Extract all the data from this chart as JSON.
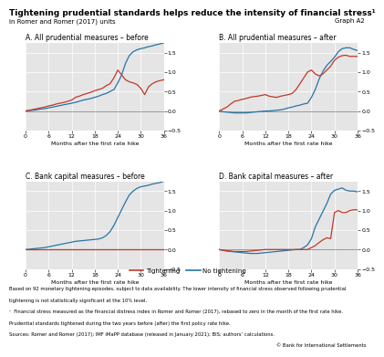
{
  "title": "Tightening prudential standards helps reduce the intensity of financial stress¹",
  "subtitle_left": "In Romer and Romer (2017) units",
  "subtitle_right": "Graph A2",
  "panel_titles": [
    "A. All prudential measures – before",
    "B. All prudential measures – after",
    "C. Bank capital measures – before",
    "D. Bank capital measures – after"
  ],
  "xlabel": "Months after the first rate hike",
  "xlim": [
    0,
    36
  ],
  "ylim": [
    -0.5,
    1.75
  ],
  "yticks": [
    -0.5,
    0.0,
    0.5,
    1.0,
    1.5
  ],
  "xticks": [
    0,
    6,
    12,
    18,
    24,
    30,
    36
  ],
  "color_tightening": "#c0392b",
  "color_no_tightening": "#2874a6",
  "legend_label_tightening": "Tightening",
  "legend_label_no_tightening": "No tightening",
  "footnote1": "Based on 92 monetary tightening episodes, subject to data availability. The lower intensity of financial stress observed following prudential",
  "footnote2": "tightening is not statistically significant at the 10% level.",
  "footnote3": "¹  Financial stress measured as the financial distress index in Romer and Romer (2017), rebased to zero in the month of the first rate hike.",
  "footnote4": "Prudential standards tightened during the two years before (after) the first policy rate hike.",
  "footnote5": "Sources: Romer and Romer (2017); IMF iMaPP database (released in January 2021); BIS; authors’ calculations.",
  "footnote6": "© Bank for International Settlements",
  "panel_A_tightening_x": [
    0,
    1,
    2,
    3,
    4,
    5,
    6,
    7,
    8,
    9,
    10,
    11,
    12,
    13,
    14,
    15,
    16,
    17,
    18,
    19,
    20,
    21,
    22,
    23,
    24,
    25,
    26,
    27,
    28,
    29,
    30,
    31,
    32,
    33,
    34,
    35,
    36
  ],
  "panel_A_tightening_y": [
    0.0,
    0.02,
    0.04,
    0.06,
    0.08,
    0.1,
    0.13,
    0.15,
    0.18,
    0.2,
    0.22,
    0.25,
    0.28,
    0.35,
    0.38,
    0.42,
    0.45,
    0.48,
    0.52,
    0.55,
    0.58,
    0.65,
    0.7,
    0.85,
    1.05,
    0.93,
    0.8,
    0.75,
    0.72,
    0.68,
    0.58,
    0.42,
    0.62,
    0.7,
    0.75,
    0.78,
    0.8
  ],
  "panel_A_no_tightening_x": [
    0,
    1,
    2,
    3,
    4,
    5,
    6,
    7,
    8,
    9,
    10,
    11,
    12,
    13,
    14,
    15,
    16,
    17,
    18,
    19,
    20,
    21,
    22,
    23,
    24,
    25,
    26,
    27,
    28,
    29,
    30,
    31,
    32,
    33,
    34,
    35,
    36
  ],
  "panel_A_no_tightening_y": [
    0.0,
    0.01,
    0.02,
    0.03,
    0.05,
    0.06,
    0.08,
    0.1,
    0.12,
    0.14,
    0.16,
    0.18,
    0.2,
    0.22,
    0.25,
    0.28,
    0.3,
    0.32,
    0.35,
    0.38,
    0.42,
    0.45,
    0.5,
    0.55,
    0.72,
    0.92,
    1.22,
    1.42,
    1.52,
    1.57,
    1.6,
    1.62,
    1.65,
    1.67,
    1.7,
    1.72,
    1.75
  ],
  "panel_B_tightening_x": [
    0,
    1,
    2,
    3,
    4,
    5,
    6,
    7,
    8,
    9,
    10,
    11,
    12,
    13,
    14,
    15,
    16,
    17,
    18,
    19,
    20,
    21,
    22,
    23,
    24,
    25,
    26,
    27,
    28,
    29,
    30,
    31,
    32,
    33,
    34,
    35,
    36
  ],
  "panel_B_tightening_y": [
    0.0,
    0.05,
    0.1,
    0.18,
    0.25,
    0.27,
    0.3,
    0.32,
    0.35,
    0.37,
    0.38,
    0.4,
    0.42,
    0.38,
    0.36,
    0.35,
    0.38,
    0.4,
    0.42,
    0.45,
    0.55,
    0.7,
    0.85,
    1.0,
    1.05,
    0.95,
    0.9,
    0.95,
    1.05,
    1.15,
    1.3,
    1.38,
    1.42,
    1.43,
    1.4,
    1.4,
    1.4
  ],
  "panel_B_no_tightening_x": [
    0,
    1,
    2,
    3,
    4,
    5,
    6,
    7,
    8,
    9,
    10,
    11,
    12,
    13,
    14,
    15,
    16,
    17,
    18,
    19,
    20,
    21,
    22,
    23,
    24,
    25,
    26,
    27,
    28,
    29,
    30,
    31,
    32,
    33,
    34,
    35,
    36
  ],
  "panel_B_no_tightening_y": [
    0.0,
    -0.02,
    -0.03,
    -0.04,
    -0.05,
    -0.05,
    -0.05,
    -0.05,
    -0.04,
    -0.03,
    -0.02,
    -0.01,
    0.0,
    0.0,
    0.01,
    0.02,
    0.03,
    0.05,
    0.08,
    0.1,
    0.13,
    0.15,
    0.18,
    0.2,
    0.35,
    0.55,
    0.82,
    1.02,
    1.17,
    1.27,
    1.38,
    1.52,
    1.6,
    1.62,
    1.62,
    1.58,
    1.55
  ],
  "panel_C_tightening_x": [
    0,
    1,
    2,
    3,
    4,
    5,
    6,
    7,
    8,
    9,
    10,
    11,
    12,
    13,
    14,
    15,
    16,
    17,
    18,
    19,
    20,
    21,
    22,
    23,
    24,
    25,
    26,
    27,
    28,
    29,
    30,
    31,
    32,
    33,
    34,
    35,
    36
  ],
  "panel_C_tightening_y": [
    0.0,
    0.0,
    0.0,
    0.0,
    0.0,
    0.0,
    0.0,
    0.0,
    0.0,
    0.0,
    0.0,
    0.0,
    0.0,
    0.0,
    0.0,
    0.0,
    0.0,
    0.0,
    0.0,
    0.0,
    0.0,
    0.0,
    0.0,
    0.0,
    0.0,
    0.0,
    0.0,
    0.0,
    0.0,
    0.0,
    0.0,
    0.0,
    0.0,
    0.0,
    0.0,
    0.0,
    0.0
  ],
  "panel_C_no_tightening_x": [
    0,
    1,
    2,
    3,
    4,
    5,
    6,
    7,
    8,
    9,
    10,
    11,
    12,
    13,
    14,
    15,
    16,
    17,
    18,
    19,
    20,
    21,
    22,
    23,
    24,
    25,
    26,
    27,
    28,
    29,
    30,
    31,
    32,
    33,
    34,
    35,
    36
  ],
  "panel_C_no_tightening_y": [
    0.0,
    0.01,
    0.02,
    0.03,
    0.04,
    0.05,
    0.07,
    0.09,
    0.11,
    0.13,
    0.15,
    0.17,
    0.19,
    0.21,
    0.22,
    0.23,
    0.24,
    0.25,
    0.26,
    0.27,
    0.3,
    0.36,
    0.46,
    0.62,
    0.82,
    1.02,
    1.22,
    1.4,
    1.5,
    1.57,
    1.61,
    1.63,
    1.65,
    1.68,
    1.7,
    1.72,
    1.75
  ],
  "panel_D_tightening_x": [
    0,
    1,
    2,
    3,
    4,
    5,
    6,
    7,
    8,
    9,
    10,
    11,
    12,
    13,
    14,
    15,
    16,
    17,
    18,
    19,
    20,
    21,
    22,
    23,
    24,
    25,
    26,
    27,
    28,
    29,
    30,
    31,
    32,
    33,
    34,
    35,
    36
  ],
  "panel_D_tightening_y": [
    0.0,
    -0.02,
    -0.03,
    -0.04,
    -0.05,
    -0.05,
    -0.05,
    -0.05,
    -0.04,
    -0.03,
    -0.02,
    -0.01,
    0.0,
    0.0,
    0.0,
    0.0,
    0.0,
    0.0,
    0.0,
    0.0,
    0.0,
    0.0,
    0.0,
    0.0,
    0.05,
    0.1,
    0.18,
    0.25,
    0.3,
    0.28,
    0.95,
    1.0,
    0.95,
    0.95,
    1.0,
    1.02,
    1.02
  ],
  "panel_D_no_tightening_x": [
    0,
    1,
    2,
    3,
    4,
    5,
    6,
    7,
    8,
    9,
    10,
    11,
    12,
    13,
    14,
    15,
    16,
    17,
    18,
    19,
    20,
    21,
    22,
    23,
    24,
    25,
    26,
    27,
    28,
    29,
    30,
    31,
    32,
    33,
    34,
    35,
    36
  ],
  "panel_D_no_tightening_y": [
    0.0,
    -0.02,
    -0.04,
    -0.05,
    -0.06,
    -0.07,
    -0.08,
    -0.09,
    -0.1,
    -0.1,
    -0.1,
    -0.09,
    -0.08,
    -0.07,
    -0.06,
    -0.05,
    -0.04,
    -0.03,
    -0.02,
    -0.01,
    0.0,
    0.0,
    0.05,
    0.12,
    0.28,
    0.58,
    0.78,
    0.98,
    1.18,
    1.42,
    1.52,
    1.55,
    1.58,
    1.52,
    1.5,
    1.5,
    1.48
  ],
  "bg_color": "#e5e5e5",
  "fig_bg_color": "#ffffff"
}
